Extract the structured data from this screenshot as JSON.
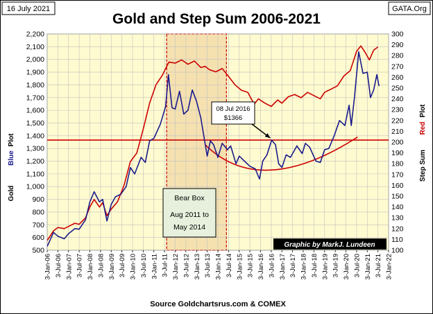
{
  "chart_data": {
    "type": "line",
    "title": "Gold and Step Sum 2006-2021",
    "corner_left": "16 July 2021",
    "corner_right": "GATA.Org",
    "left_axis_label": {
      "blue_word": "Blue",
      "plot_word": "Plot",
      "gold_word": "Gold"
    },
    "right_axis_label": {
      "step_word": "Step Sum",
      "red_word": "Red",
      "plot_word": "Plot"
    },
    "source": "Source Goldchartsrus.com & COMEX",
    "credit": "Graphic by MarkJ. Lundeen",
    "bear_box": {
      "title": "Bear Box",
      "line1": "Aug 2011 to",
      "line2": "May 2014",
      "start": 2011.6,
      "end": 2014.4
    },
    "callout": {
      "line1": "08 Jul 2016",
      "line2": "$1366",
      "x": 2016.52,
      "y": 1366
    },
    "horizontal_line_value": 1366,
    "left_ylim": [
      500,
      2200
    ],
    "left_yticks": [
      "500",
      "600",
      "700",
      "800",
      "900",
      "1,000",
      "1,100",
      "1,200",
      "1,300",
      "1,400",
      "1,500",
      "1,600",
      "1,700",
      "1,800",
      "1,900",
      "2,000",
      "2,100",
      "2,200"
    ],
    "right_ylim": [
      100,
      300
    ],
    "right_yticks": [
      "100",
      "110",
      "120",
      "130",
      "140",
      "150",
      "160",
      "170",
      "180",
      "190",
      "200",
      "210",
      "220",
      "230",
      "240",
      "250",
      "260",
      "270",
      "280",
      "290",
      "300"
    ],
    "xlim": [
      2006.0,
      2022.0
    ],
    "x_ticks": [
      "3-Jan-06",
      "3-Jul-06",
      "3-Jan-07",
      "3-Jul-07",
      "3-Jan-08",
      "3-Jul-08",
      "3-Jan-09",
      "3-Jul-09",
      "3-Jan-10",
      "3-Jul-10",
      "3-Jan-11",
      "3-Jul-11",
      "3-Jan-12",
      "3-Jul-12",
      "3-Jan-13",
      "3-Jul-13",
      "3-Jan-14",
      "3-Jul-14",
      "3-Jan-15",
      "3-Jul-15",
      "3-Jan-16",
      "3-Jul-16",
      "3-Jan-17",
      "3-Jul-17",
      "3-Jan-18",
      "3-Jul-18",
      "3-Jan-19",
      "3-Jul-19",
      "3-Jan-20",
      "3-Jul-20",
      "3-Jan-21",
      "3-Jul-21",
      "3-Jan-22"
    ],
    "grid": true,
    "colors": {
      "gold_series": "#1a1a8c",
      "step_sum_series": "#cc0000",
      "plot_bg": "#fffbd0",
      "grid": "#c0c0c0",
      "bear_box_fill": "#f3dcaa",
      "trend_arc": "#cc0000",
      "hline": "#cc0000"
    },
    "series": [
      {
        "name": "Gold",
        "axis": "left",
        "points": [
          [
            2006.0,
            530
          ],
          [
            2006.3,
            640
          ],
          [
            2006.5,
            610
          ],
          [
            2006.8,
            590
          ],
          [
            2007.0,
            630
          ],
          [
            2007.3,
            670
          ],
          [
            2007.5,
            665
          ],
          [
            2007.8,
            740
          ],
          [
            2008.0,
            880
          ],
          [
            2008.2,
            960
          ],
          [
            2008.45,
            880
          ],
          [
            2008.6,
            900
          ],
          [
            2008.8,
            730
          ],
          [
            2009.0,
            860
          ],
          [
            2009.2,
            920
          ],
          [
            2009.45,
            940
          ],
          [
            2009.7,
            1000
          ],
          [
            2009.9,
            1150
          ],
          [
            2010.1,
            1100
          ],
          [
            2010.4,
            1230
          ],
          [
            2010.6,
            1190
          ],
          [
            2010.8,
            1360
          ],
          [
            2011.0,
            1380
          ],
          [
            2011.3,
            1490
          ],
          [
            2011.55,
            1630
          ],
          [
            2011.68,
            1880
          ],
          [
            2011.85,
            1620
          ],
          [
            2012.0,
            1610
          ],
          [
            2012.2,
            1750
          ],
          [
            2012.4,
            1570
          ],
          [
            2012.6,
            1600
          ],
          [
            2012.8,
            1760
          ],
          [
            2013.0,
            1670
          ],
          [
            2013.2,
            1540
          ],
          [
            2013.35,
            1390
          ],
          [
            2013.5,
            1240
          ],
          [
            2013.65,
            1360
          ],
          [
            2013.8,
            1330
          ],
          [
            2014.0,
            1230
          ],
          [
            2014.2,
            1340
          ],
          [
            2014.45,
            1290
          ],
          [
            2014.6,
            1320
          ],
          [
            2014.85,
            1180
          ],
          [
            2015.0,
            1240
          ],
          [
            2015.25,
            1200
          ],
          [
            2015.5,
            1160
          ],
          [
            2015.75,
            1140
          ],
          [
            2015.95,
            1060
          ],
          [
            2016.1,
            1200
          ],
          [
            2016.3,
            1250
          ],
          [
            2016.52,
            1366
          ],
          [
            2016.7,
            1330
          ],
          [
            2016.85,
            1180
          ],
          [
            2017.0,
            1150
          ],
          [
            2017.2,
            1250
          ],
          [
            2017.4,
            1230
          ],
          [
            2017.7,
            1320
          ],
          [
            2017.95,
            1260
          ],
          [
            2018.1,
            1340
          ],
          [
            2018.3,
            1310
          ],
          [
            2018.6,
            1200
          ],
          [
            2018.8,
            1190
          ],
          [
            2019.0,
            1290
          ],
          [
            2019.2,
            1300
          ],
          [
            2019.45,
            1400
          ],
          [
            2019.7,
            1520
          ],
          [
            2019.95,
            1480
          ],
          [
            2020.15,
            1640
          ],
          [
            2020.25,
            1480
          ],
          [
            2020.4,
            1700
          ],
          [
            2020.6,
            2060
          ],
          [
            2020.8,
            1890
          ],
          [
            2021.0,
            1900
          ],
          [
            2021.15,
            1700
          ],
          [
            2021.3,
            1760
          ],
          [
            2021.45,
            1880
          ],
          [
            2021.55,
            1790
          ]
        ]
      },
      {
        "name": "Step Sum",
        "axis": "right",
        "points": [
          [
            2006.0,
            109
          ],
          [
            2006.3,
            118
          ],
          [
            2006.5,
            121
          ],
          [
            2006.8,
            120
          ],
          [
            2007.0,
            122
          ],
          [
            2007.3,
            125
          ],
          [
            2007.5,
            124
          ],
          [
            2007.8,
            130
          ],
          [
            2008.0,
            140
          ],
          [
            2008.2,
            147
          ],
          [
            2008.45,
            140
          ],
          [
            2008.6,
            144
          ],
          [
            2008.8,
            132
          ],
          [
            2009.0,
            138
          ],
          [
            2009.3,
            145
          ],
          [
            2009.6,
            160
          ],
          [
            2009.9,
            182
          ],
          [
            2010.2,
            190
          ],
          [
            2010.5,
            212
          ],
          [
            2010.8,
            236
          ],
          [
            2011.1,
            253
          ],
          [
            2011.4,
            262
          ],
          [
            2011.7,
            274
          ],
          [
            2012.0,
            273
          ],
          [
            2012.3,
            276
          ],
          [
            2012.6,
            272
          ],
          [
            2012.9,
            275
          ],
          [
            2013.2,
            269
          ],
          [
            2013.4,
            270
          ],
          [
            2013.6,
            267
          ],
          [
            2013.9,
            265
          ],
          [
            2014.2,
            268
          ],
          [
            2014.45,
            262
          ],
          [
            2014.8,
            253
          ],
          [
            2015.1,
            248
          ],
          [
            2015.4,
            246
          ],
          [
            2015.7,
            235
          ],
          [
            2015.9,
            240
          ],
          [
            2016.2,
            236
          ],
          [
            2016.5,
            233
          ],
          [
            2016.8,
            239
          ],
          [
            2017.0,
            236
          ],
          [
            2017.3,
            242
          ],
          [
            2017.6,
            244
          ],
          [
            2017.9,
            241
          ],
          [
            2018.2,
            246
          ],
          [
            2018.5,
            243
          ],
          [
            2018.8,
            240
          ],
          [
            2019.0,
            246
          ],
          [
            2019.3,
            249
          ],
          [
            2019.6,
            252
          ],
          [
            2019.9,
            261
          ],
          [
            2020.2,
            266
          ],
          [
            2020.5,
            284
          ],
          [
            2020.7,
            289
          ],
          [
            2020.9,
            283
          ],
          [
            2021.1,
            276
          ],
          [
            2021.3,
            285
          ],
          [
            2021.5,
            288
          ]
        ]
      }
    ],
    "trend_arc": {
      "start": [
        2013.4,
        1330
      ],
      "control": [
        2016.0,
        900
      ],
      "end": [
        2020.55,
        1390
      ]
    }
  }
}
